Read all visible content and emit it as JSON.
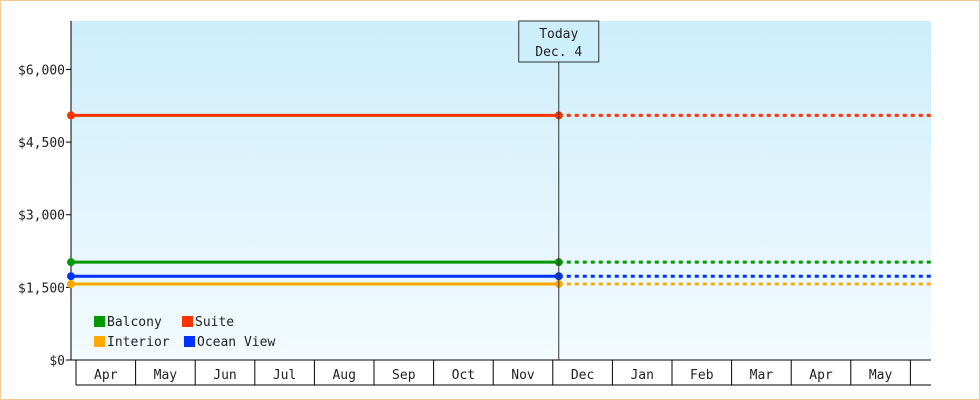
{
  "chart_data": {
    "type": "line",
    "ylim": [
      0,
      7000
    ],
    "yticks": [
      0,
      1500,
      3000,
      4500,
      6000
    ],
    "ytick_labels": [
      "$0",
      "$1,500",
      "$3,000",
      "$4,500",
      "$6,000"
    ],
    "months": [
      "Apr",
      "May",
      "Jun",
      "Jul",
      "Aug",
      "Sep",
      "Oct",
      "Nov",
      "Dec",
      "Jan",
      "Feb",
      "Mar",
      "Apr",
      "May"
    ],
    "today": {
      "line1": "Today",
      "line2": "Dec. 4",
      "month_position": 8.1
    },
    "series": [
      {
        "name": "Suite",
        "color": "#ff3300",
        "value": 5050
      },
      {
        "name": "Balcony",
        "color": "#009900",
        "value": 2020
      },
      {
        "name": "Ocean View",
        "color": "#0033ff",
        "value": 1730
      },
      {
        "name": "Interior",
        "color": "#ffaa00",
        "value": 1570
      }
    ],
    "legend": [
      {
        "name": "Balcony",
        "color": "#009900"
      },
      {
        "name": "Suite",
        "color": "#ff3300"
      },
      {
        "name": "Interior",
        "color": "#ffaa00"
      },
      {
        "name": "Ocean View",
        "color": "#0033ff"
      }
    ],
    "legend_position": "bottom-left",
    "grid": false
  }
}
